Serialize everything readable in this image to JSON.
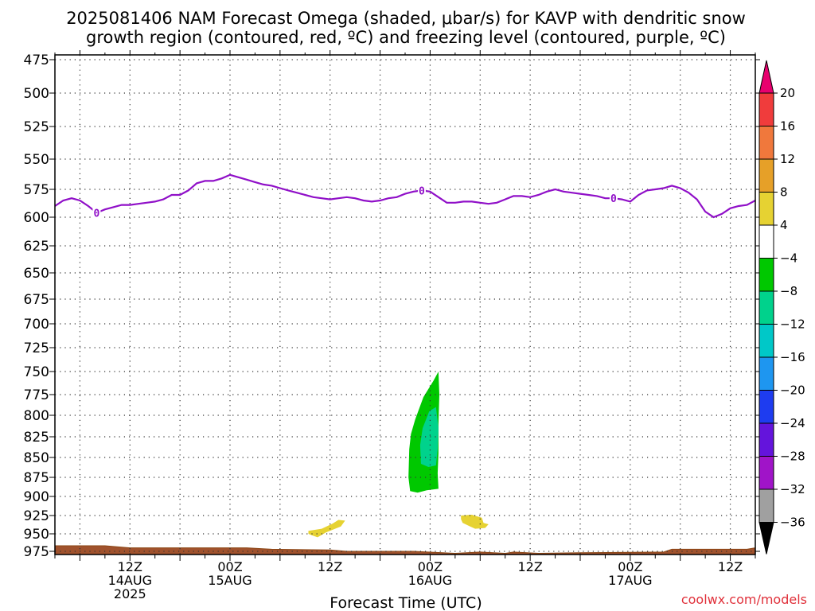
{
  "chart_data": {
    "type": "heatmap",
    "title_line1": "2025081406 NAM Forecast Omega (shaded, μbar/s) for KAVP with dendritic snow",
    "title_line2": "growth region (contoured, red, ºC) and freezing level (contoured, purple, ºC)",
    "xlabel": "Forecast Time (UTC)",
    "ylabel": "",
    "credit": "coolwx.com/models",
    "x_range_hours": [
      -3,
      81
    ],
    "y_range_hpa": [
      475,
      975
    ],
    "y_scale": "pressure",
    "grid": "dotted",
    "y_ticks": [
      475,
      500,
      525,
      550,
      575,
      600,
      625,
      650,
      675,
      700,
      725,
      750,
      775,
      800,
      825,
      850,
      875,
      900,
      925,
      950,
      975
    ],
    "x_ticks": [
      {
        "hour": 6,
        "l1": "12Z",
        "l2": "14AUG",
        "l3": "2025"
      },
      {
        "hour": 18,
        "l1": "00Z",
        "l2": "15AUG",
        "l3": ""
      },
      {
        "hour": 30,
        "l1": "12Z",
        "l2": "",
        "l3": ""
      },
      {
        "hour": 42,
        "l1": "00Z",
        "l2": "16AUG",
        "l3": ""
      },
      {
        "hour": 54,
        "l1": "12Z",
        "l2": "",
        "l3": ""
      },
      {
        "hour": 66,
        "l1": "00Z",
        "l2": "17AUG",
        "l3": ""
      },
      {
        "hour": 78,
        "l1": "12Z",
        "l2": "",
        "l3": ""
      }
    ],
    "colorbar": {
      "ticks": [
        "20",
        "16",
        "12",
        "8",
        "4",
        "−4",
        "−8",
        "−12",
        "−16",
        "−20",
        "−24",
        "−28",
        "−32",
        "−36"
      ],
      "colors_top_to_bottom": [
        "#e8006e",
        "#f03c3c",
        "#f0783c",
        "#e6a028",
        "#e6d232",
        "#ffffff",
        "#00c800",
        "#00d28c",
        "#00c8c8",
        "#1e96f0",
        "#1e3cf0",
        "#6414dc",
        "#a014c8",
        "#a0a0a0",
        "#000000"
      ]
    },
    "freezing_level": {
      "label": "0",
      "color": "#9010c8",
      "label_hours": [
        2,
        41,
        64
      ],
      "points": [
        [
          -3,
          590
        ],
        [
          -2,
          585
        ],
        [
          -1,
          583
        ],
        [
          0,
          585
        ],
        [
          1,
          590
        ],
        [
          2,
          596
        ],
        [
          3,
          593
        ],
        [
          4,
          591
        ],
        [
          5,
          589
        ],
        [
          6,
          589
        ],
        [
          7,
          588
        ],
        [
          8,
          587
        ],
        [
          9,
          586
        ],
        [
          10,
          584
        ],
        [
          11,
          580
        ],
        [
          12,
          580
        ],
        [
          13,
          576
        ],
        [
          14,
          570
        ],
        [
          15,
          568
        ],
        [
          16,
          568
        ],
        [
          17,
          566
        ],
        [
          18,
          563
        ],
        [
          19,
          565
        ],
        [
          20,
          567
        ],
        [
          21,
          569
        ],
        [
          22,
          571
        ],
        [
          23,
          572
        ],
        [
          24,
          574
        ],
        [
          25,
          576
        ],
        [
          26,
          578
        ],
        [
          27,
          580
        ],
        [
          28,
          582
        ],
        [
          29,
          583
        ],
        [
          30,
          584
        ],
        [
          31,
          583
        ],
        [
          32,
          582
        ],
        [
          33,
          583
        ],
        [
          34,
          585
        ],
        [
          35,
          586
        ],
        [
          36,
          585
        ],
        [
          37,
          583
        ],
        [
          38,
          582
        ],
        [
          39,
          579
        ],
        [
          40,
          577
        ],
        [
          41,
          576
        ],
        [
          42,
          577
        ],
        [
          43,
          582
        ],
        [
          44,
          587
        ],
        [
          45,
          587
        ],
        [
          46,
          586
        ],
        [
          47,
          586
        ],
        [
          48,
          587
        ],
        [
          49,
          588
        ],
        [
          50,
          587
        ],
        [
          51,
          584
        ],
        [
          52,
          581
        ],
        [
          53,
          581
        ],
        [
          54,
          582
        ],
        [
          55,
          580
        ],
        [
          56,
          577
        ],
        [
          57,
          575
        ],
        [
          58,
          577
        ],
        [
          59,
          578
        ],
        [
          60,
          579
        ],
        [
          61,
          580
        ],
        [
          62,
          581
        ],
        [
          63,
          583
        ],
        [
          64,
          583
        ],
        [
          65,
          584
        ],
        [
          66,
          586
        ],
        [
          67,
          580
        ],
        [
          68,
          576
        ],
        [
          69,
          575
        ],
        [
          70,
          574
        ],
        [
          71,
          572
        ],
        [
          72,
          574
        ],
        [
          73,
          578
        ],
        [
          74,
          584
        ],
        [
          75,
          595
        ],
        [
          76,
          600
        ],
        [
          77,
          597
        ],
        [
          78,
          592
        ],
        [
          79,
          590
        ],
        [
          80,
          589
        ],
        [
          81,
          585
        ]
      ]
    },
    "omega_shaded": [
      {
        "value": -6,
        "color": "#00c800",
        "points": [
          [
            39.6,
            893
          ],
          [
            39.4,
            875
          ],
          [
            39.5,
            840
          ],
          [
            39.7,
            822
          ],
          [
            40.2,
            805
          ],
          [
            41.2,
            778
          ],
          [
            42.4,
            760
          ],
          [
            43.0,
            750
          ],
          [
            43.1,
            775
          ],
          [
            43.0,
            810
          ],
          [
            43.0,
            845
          ],
          [
            42.9,
            870
          ],
          [
            43.0,
            890
          ],
          [
            41.6,
            892
          ],
          [
            40.5,
            895
          ]
        ]
      },
      {
        "value": -10,
        "color": "#00d28c",
        "points": [
          [
            40.9,
            858
          ],
          [
            40.8,
            835
          ],
          [
            41.1,
            815
          ],
          [
            41.9,
            795
          ],
          [
            42.7,
            790
          ],
          [
            43.0,
            815
          ],
          [
            42.9,
            840
          ],
          [
            42.7,
            860
          ],
          [
            41.8,
            862
          ]
        ]
      },
      {
        "value": 6,
        "color": "#e6d232",
        "points": [
          [
            27.4,
            950
          ],
          [
            27.4,
            946
          ],
          [
            29.0,
            943
          ],
          [
            30.3,
            936
          ],
          [
            31.0,
            931
          ],
          [
            31.8,
            932
          ],
          [
            31.3,
            940
          ],
          [
            29.5,
            948
          ],
          [
            28.5,
            955
          ],
          [
            27.8,
            952
          ]
        ]
      },
      {
        "value": 6,
        "color": "#e6d232",
        "points": [
          [
            45.7,
            930
          ],
          [
            45.7,
            925
          ],
          [
            47.0,
            924
          ],
          [
            48.2,
            928
          ],
          [
            48.4,
            935
          ],
          [
            49.0,
            937
          ],
          [
            48.6,
            942
          ],
          [
            47.4,
            943
          ],
          [
            46.8,
            940
          ],
          [
            45.9,
            935
          ]
        ]
      }
    ],
    "terrain_hpa": [
      [
        -3,
        967
      ],
      [
        3,
        967
      ],
      [
        6,
        970
      ],
      [
        20,
        970
      ],
      [
        23,
        972
      ],
      [
        30,
        973
      ],
      [
        32,
        975
      ],
      [
        40,
        975
      ],
      [
        45,
        978
      ],
      [
        48,
        976
      ],
      [
        51,
        978
      ],
      [
        52,
        976
      ],
      [
        55,
        978
      ],
      [
        60,
        977
      ],
      [
        70,
        976
      ],
      [
        71,
        972
      ],
      [
        80,
        972
      ],
      [
        81,
        970
      ]
    ]
  }
}
